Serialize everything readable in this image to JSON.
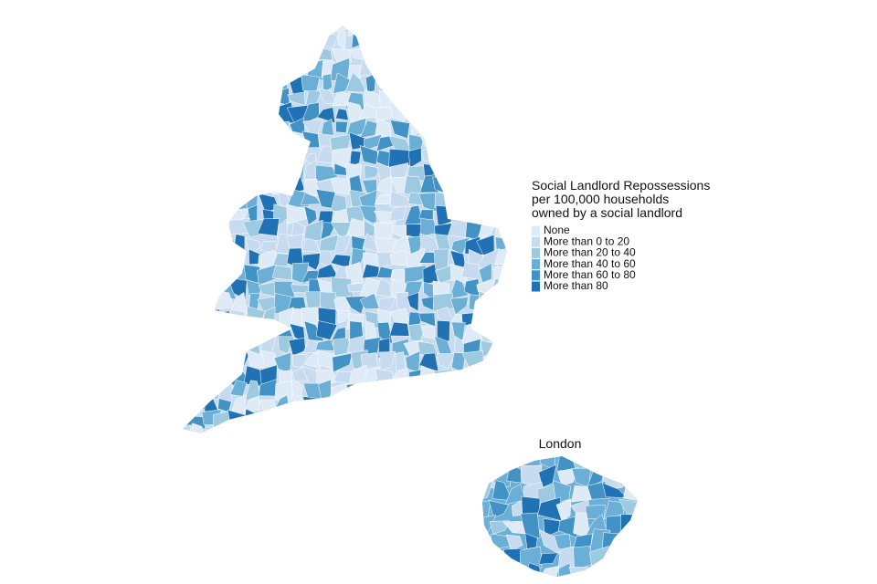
{
  "legend": {
    "title": [
      "Social Landlord Repossessions",
      "per 100,000 households",
      "owned by a social landlord"
    ],
    "items": [
      {
        "label": "None",
        "color": "#deebf7"
      },
      {
        "label": "More than 0 to 20",
        "color": "#c6dbef"
      },
      {
        "label": "More than 20 to 40",
        "color": "#9ecae1"
      },
      {
        "label": "More than 40 to 60",
        "color": "#6baed6"
      },
      {
        "label": "More than 60 to 80",
        "color": "#4292c6"
      },
      {
        "label": "More than 80",
        "color": "#2171b5"
      }
    ]
  },
  "inset": {
    "title": "London"
  }
}
